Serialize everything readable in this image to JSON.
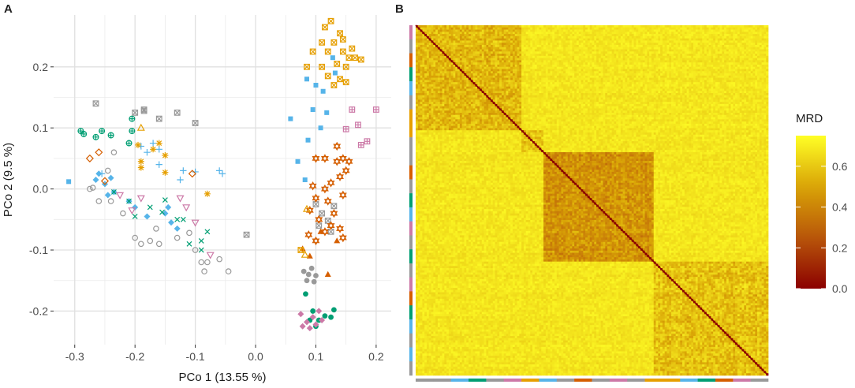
{
  "panel_a_label": "A",
  "panel_b_label": "B",
  "chart_data": [
    {
      "type": "scatter",
      "title": "",
      "xlabel": "PCo 1 (13.55 %)",
      "ylabel": "PCo 2 (9.5 %)",
      "xlim": [
        -0.335,
        0.225
      ],
      "ylim": [
        -0.255,
        0.285
      ],
      "xticks": [
        -0.3,
        -0.2,
        -0.1,
        0.0,
        0.1,
        0.2
      ],
      "xtick_labels": [
        "-0.3",
        "-0.2",
        "-0.1",
        "0.0",
        "0.1",
        "0.2"
      ],
      "yticks": [
        -0.2,
        -0.1,
        0.0,
        0.1,
        0.2
      ],
      "ytick_labels": [
        "-0.2",
        "-0.1",
        "0.0",
        "0.1",
        "0.2"
      ],
      "grid": true,
      "series": [
        {
          "name": "blue-square",
          "shape": "square",
          "color": "#56B4E9",
          "points": [
            [
              -0.31,
              0.012
            ],
            [
              0.058,
              0.115
            ],
            [
              0.085,
              0.18
            ],
            [
              0.087,
              0.08
            ],
            [
              0.095,
              0.13
            ],
            [
              0.1,
              0.17
            ],
            [
              0.112,
              0.16
            ],
            [
              0.118,
              0.125
            ],
            [
              0.108,
              0.1
            ],
            [
              0.128,
              0.215
            ],
            [
              0.132,
              0.19
            ],
            [
              0.07,
              0.045
            ],
            [
              0.082,
              0.015
            ]
          ]
        },
        {
          "name": "blue-diamond",
          "shape": "diamond",
          "color": "#56B4E9",
          "points": [
            [
              -0.265,
              0.015
            ],
            [
              -0.26,
              0.025
            ],
            [
              -0.25,
              0.008
            ],
            [
              -0.245,
              -0.01
            ],
            [
              -0.235,
              -0.005
            ],
            [
              -0.24,
              0.018
            ],
            [
              -0.21,
              -0.02
            ],
            [
              -0.2,
              -0.03
            ],
            [
              -0.18,
              -0.045
            ],
            [
              -0.15,
              -0.04
            ],
            [
              -0.145,
              -0.03
            ],
            [
              -0.14,
              -0.055
            ],
            [
              -0.13,
              -0.065
            ]
          ]
        },
        {
          "name": "blue-plus",
          "shape": "plus",
          "color": "#56B4E9",
          "points": [
            [
              -0.255,
              0.025
            ],
            [
              -0.19,
              0.07
            ],
            [
              -0.18,
              0.06
            ],
            [
              -0.17,
              0.075
            ],
            [
              -0.16,
              0.065
            ],
            [
              -0.16,
              0.04
            ],
            [
              -0.12,
              0.03
            ],
            [
              -0.1,
              0.028
            ],
            [
              -0.06,
              0.03
            ],
            [
              -0.055,
              0.025
            ],
            [
              -0.125,
              0.015
            ]
          ]
        },
        {
          "name": "green-cross",
          "shape": "cross",
          "color": "#009E73",
          "points": [
            [
              -0.235,
              -0.005
            ],
            [
              -0.21,
              -0.02
            ],
            [
              -0.2,
              -0.045
            ],
            [
              -0.175,
              -0.03
            ],
            [
              -0.155,
              -0.038
            ],
            [
              -0.13,
              -0.05
            ],
            [
              -0.11,
              -0.09
            ],
            [
              -0.09,
              -0.085
            ],
            [
              -0.09,
              -0.1
            ],
            [
              -0.08,
              -0.07
            ],
            [
              -0.15,
              -0.018
            ],
            [
              -0.12,
              -0.05
            ]
          ]
        },
        {
          "name": "green-circleplus",
          "shape": "circleplus",
          "color": "#009E73",
          "points": [
            [
              -0.29,
              0.095
            ],
            [
              -0.285,
              0.09
            ],
            [
              -0.265,
              0.085
            ],
            [
              -0.255,
              0.095
            ],
            [
              -0.24,
              0.088
            ],
            [
              -0.205,
              0.115
            ],
            [
              -0.205,
              0.095
            ],
            [
              -0.21,
              0.075
            ]
          ]
        },
        {
          "name": "green-dot",
          "shape": "dot",
          "color": "#009E73",
          "points": [
            [
              0.083,
              -0.172
            ],
            [
              0.095,
              -0.2
            ],
            [
              0.105,
              -0.215
            ],
            [
              0.115,
              -0.208
            ],
            [
              0.125,
              -0.21
            ],
            [
              0.13,
              -0.198
            ],
            [
              0.09,
              -0.215
            ],
            [
              0.1,
              -0.225
            ]
          ]
        },
        {
          "name": "gray-circle",
          "shape": "circle",
          "color": "#999999",
          "points": [
            [
              -0.275,
              0.0
            ],
            [
              -0.27,
              0.002
            ],
            [
              -0.26,
              -0.02
            ],
            [
              -0.245,
              0.03
            ],
            [
              -0.24,
              -0.02
            ],
            [
              -0.235,
              0.06
            ],
            [
              -0.22,
              -0.04
            ],
            [
              -0.2,
              -0.08
            ],
            [
              -0.19,
              -0.09
            ],
            [
              -0.175,
              -0.085
            ],
            [
              -0.16,
              -0.09
            ],
            [
              -0.13,
              -0.08
            ],
            [
              -0.1,
              -0.1
            ],
            [
              -0.09,
              -0.12
            ],
            [
              -0.085,
              -0.135
            ],
            [
              -0.08,
              -0.12
            ],
            [
              -0.045,
              -0.135
            ],
            [
              -0.165,
              -0.065
            ],
            [
              -0.11,
              -0.072
            ],
            [
              -0.06,
              -0.115
            ]
          ]
        },
        {
          "name": "gray-boxx",
          "shape": "boxx",
          "color": "#999999",
          "points": [
            [
              -0.265,
              0.14
            ],
            [
              -0.2,
              0.125
            ],
            [
              -0.185,
              0.13
            ],
            [
              -0.16,
              0.115
            ],
            [
              -0.13,
              0.125
            ],
            [
              -0.1,
              0.108
            ],
            [
              -0.015,
              -0.075
            ],
            [
              -0.185,
              0.128
            ],
            [
              0.1,
              -0.025
            ],
            [
              0.11,
              -0.04
            ],
            [
              0.12,
              -0.052
            ],
            [
              0.13,
              -0.028
            ],
            [
              0.105,
              -0.06
            ],
            [
              0.125,
              -0.07
            ]
          ]
        },
        {
          "name": "gray-dot",
          "shape": "dot",
          "color": "#999999",
          "points": [
            [
              0.08,
              -0.135
            ],
            [
              0.088,
              -0.14
            ],
            [
              0.093,
              -0.13
            ],
            [
              0.1,
              -0.142
            ],
            [
              0.085,
              -0.15
            ],
            [
              0.097,
              -0.152
            ]
          ]
        },
        {
          "name": "vermilion-diamond",
          "shape": "diamondo",
          "color": "#D55E00",
          "points": [
            [
              -0.275,
              0.05
            ],
            [
              -0.26,
              0.06
            ],
            [
              -0.25,
              0.013
            ],
            [
              -0.105,
              0.025
            ]
          ]
        },
        {
          "name": "vermilion-star",
          "shape": "star6",
          "color": "#D55E00",
          "points": [
            [
              0.095,
              0.005
            ],
            [
              0.1,
              -0.015
            ],
            [
              0.115,
              0.0
            ],
            [
              0.12,
              -0.02
            ],
            [
              0.125,
              0.01
            ],
            [
              0.135,
              0.045
            ],
            [
              0.14,
              0.02
            ],
            [
              0.13,
              -0.04
            ],
            [
              0.145,
              -0.01
            ],
            [
              0.15,
              0.03
            ],
            [
              0.1,
              0.05
            ],
            [
              0.115,
              0.05
            ],
            [
              0.09,
              -0.035
            ],
            [
              0.105,
              -0.05
            ],
            [
              0.125,
              -0.06
            ],
            [
              0.14,
              -0.065
            ],
            [
              0.145,
              -0.08
            ],
            [
              0.1,
              -0.085
            ],
            [
              0.088,
              -0.075
            ],
            [
              0.115,
              -0.07
            ],
            [
              0.145,
              0.05
            ],
            [
              0.135,
              0.07
            ],
            [
              0.155,
              0.045
            ]
          ]
        },
        {
          "name": "vermilion-triangle",
          "shape": "triangle",
          "color": "#D55E00",
          "points": [
            [
              0.078,
              -0.098
            ],
            [
              0.09,
              -0.11
            ],
            [
              0.12,
              -0.14
            ],
            [
              0.108,
              -0.07
            ],
            [
              0.135,
              -0.085
            ]
          ]
        },
        {
          "name": "orange-boxx",
          "shape": "boxx",
          "color": "#E69F00",
          "points": [
            [
              0.125,
              0.275
            ],
            [
              0.115,
              0.265
            ],
            [
              0.14,
              0.255
            ],
            [
              0.13,
              0.24
            ],
            [
              0.12,
              0.225
            ],
            [
              0.145,
              0.225
            ],
            [
              0.155,
              0.215
            ],
            [
              0.165,
              0.215
            ],
            [
              0.175,
              0.212
            ],
            [
              0.135,
              0.205
            ],
            [
              0.15,
              0.2
            ],
            [
              0.11,
              0.2
            ],
            [
              0.12,
              0.185
            ],
            [
              0.14,
              0.18
            ],
            [
              0.15,
              0.175
            ],
            [
              0.13,
              0.17
            ],
            [
              0.085,
              0.2
            ],
            [
              0.075,
              -0.1
            ],
            [
              0.095,
              0.225
            ],
            [
              0.11,
              0.24
            ],
            [
              0.16,
              0.23
            ],
            [
              0.145,
              0.245
            ]
          ]
        },
        {
          "name": "orange-asterisk",
          "shape": "asterisk",
          "color": "#E69F00",
          "points": [
            [
              -0.195,
              0.072
            ],
            [
              -0.19,
              0.045
            ],
            [
              -0.17,
              0.065
            ],
            [
              -0.16,
              0.075
            ],
            [
              -0.15,
              0.055
            ],
            [
              -0.15,
              0.027
            ],
            [
              -0.08,
              -0.008
            ],
            [
              -0.19,
              0.035
            ]
          ]
        },
        {
          "name": "orange-triangle",
          "shape": "triangleo",
          "color": "#E69F00",
          "points": [
            [
              -0.19,
              0.1
            ],
            [
              0.082,
              -0.108
            ],
            [
              0.085,
              -0.033
            ]
          ]
        },
        {
          "name": "pink-triangle-down",
          "shape": "triangledown",
          "color": "#CC79A7",
          "points": [
            [
              -0.225,
              -0.01
            ],
            [
              -0.205,
              -0.035
            ],
            [
              -0.19,
              -0.015
            ],
            [
              -0.125,
              -0.015
            ],
            [
              -0.115,
              -0.03
            ],
            [
              -0.1,
              -0.055
            ],
            [
              -0.075,
              -0.108
            ]
          ]
        },
        {
          "name": "pink-boxplus",
          "shape": "boxplus",
          "color": "#CC79A7",
          "points": [
            [
              0.16,
              0.13
            ],
            [
              0.2,
              0.13
            ],
            [
              0.17,
              0.105
            ],
            [
              0.175,
              0.072
            ],
            [
              0.185,
              0.078
            ],
            [
              0.15,
              0.098
            ]
          ]
        },
        {
          "name": "pink-diamond",
          "shape": "diamond",
          "color": "#CC79A7",
          "points": [
            [
              0.075,
              -0.205
            ],
            [
              0.085,
              -0.218
            ],
            [
              0.095,
              -0.21
            ],
            [
              0.1,
              -0.222
            ],
            [
              0.09,
              -0.228
            ],
            [
              0.11,
              -0.215
            ],
            [
              0.078,
              -0.225
            ],
            [
              0.105,
              -0.2
            ]
          ]
        }
      ]
    },
    {
      "type": "heatmap",
      "title": "",
      "legend_title": "MRD",
      "legend_placement": "right",
      "colorbar_ticks": [
        0.0,
        0.2,
        0.4,
        0.6
      ],
      "colorbar_tick_labels": [
        "0.0",
        "0.2",
        "0.4",
        "0.6"
      ],
      "value_range": [
        0.0,
        0.75
      ],
      "colorscale": [
        "#8B0000",
        "#B8560A",
        "#D9A406",
        "#FFFF26"
      ],
      "n_cells": 160,
      "cluster_bounds": [
        0,
        48,
        58,
        108,
        160
      ],
      "cluster_within_values": [
        0.55,
        0.6,
        0.45,
        0.58
      ],
      "between_value": 0.68,
      "diagonal_value": 0.0,
      "left_annotation_colors": [
        "#CC79A7",
        "#999999",
        "#D55E00",
        "#009E73",
        "#56B4E9",
        "#999999",
        "#E69F00",
        "#E69F00",
        "#999999",
        "#999999",
        "#D55E00",
        "#999999",
        "#009E73",
        "#56B4E9",
        "#CC79A7",
        "#999999",
        "#009E73",
        "#999999",
        "#CC79A7",
        "#D55E00",
        "#009E73",
        "#56B4E9",
        "#999999",
        "#56B4E9",
        "#999999"
      ],
      "bottom_annotation_colors": [
        "#999999",
        "#999999",
        "#56B4E9",
        "#009E73",
        "#999999",
        "#CC79A7",
        "#E69F00",
        "#56B4E9",
        "#999999",
        "#D55E00",
        "#999999",
        "#CC79A7",
        "#999999",
        "#E69F00",
        "#E69F00",
        "#56B4E9",
        "#009E73",
        "#D55E00",
        "#CC79A7",
        "#999999"
      ]
    }
  ]
}
